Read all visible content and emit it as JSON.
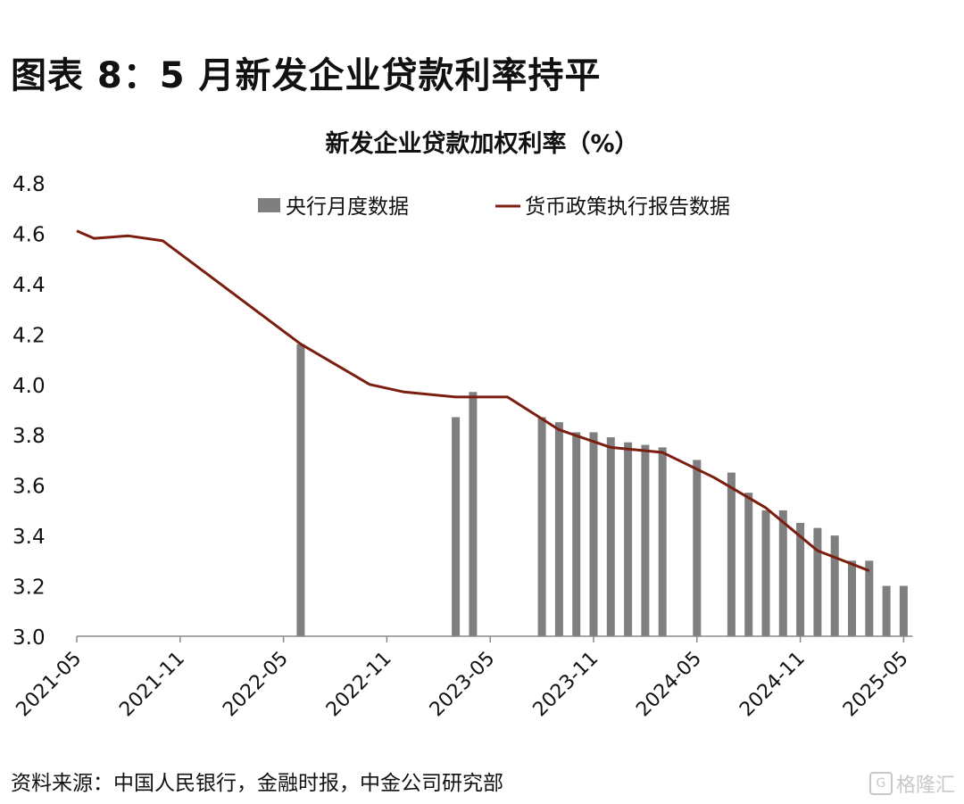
{
  "figure_title": "图表 8：5 月新发企业贷款利率持平",
  "source": "资料来源：中国人民银行，金融时报，中金公司研究部",
  "watermark": {
    "logo": "G",
    "text": "格隆汇"
  },
  "colors": {
    "bar": "#7f7f7f",
    "line": "#7b1e10",
    "axis": "#888888",
    "text": "#111111"
  },
  "chart_data": {
    "type": "bar+line",
    "title": "新发企业贷款加权利率（%）",
    "xlabel": "",
    "ylabel": "",
    "ylim": [
      3.0,
      4.8
    ],
    "yticks": [
      "3.0",
      "3.2",
      "3.4",
      "3.6",
      "3.8",
      "4.0",
      "4.2",
      "4.4",
      "4.6",
      "4.8"
    ],
    "xtick_labels": [
      "2021-05",
      "2021-11",
      "2022-05",
      "2022-11",
      "2023-05",
      "2023-11",
      "2024-05",
      "2024-11",
      "2025-05"
    ],
    "x_start": "2021-05",
    "legend": [
      "央行月度数据",
      "货币政策执行报告数据"
    ],
    "legend_position": "top",
    "series": [
      {
        "name": "央行月度数据",
        "type": "bar",
        "points": [
          {
            "month": "2022-06",
            "value": 4.16
          },
          {
            "month": "2023-03",
            "value": 3.87
          },
          {
            "month": "2023-04",
            "value": 3.97
          },
          {
            "month": "2023-08",
            "value": 3.87
          },
          {
            "month": "2023-09",
            "value": 3.85
          },
          {
            "month": "2023-10",
            "value": 3.81
          },
          {
            "month": "2023-11",
            "value": 3.81
          },
          {
            "month": "2023-12",
            "value": 3.79
          },
          {
            "month": "2024-01",
            "value": 3.77
          },
          {
            "month": "2024-02",
            "value": 3.76
          },
          {
            "month": "2024-03",
            "value": 3.75
          },
          {
            "month": "2024-05",
            "value": 3.7
          },
          {
            "month": "2024-07",
            "value": 3.65
          },
          {
            "month": "2024-08",
            "value": 3.57
          },
          {
            "month": "2024-09",
            "value": 3.5
          },
          {
            "month": "2024-10",
            "value": 3.5
          },
          {
            "month": "2024-11",
            "value": 3.45
          },
          {
            "month": "2024-12",
            "value": 3.43
          },
          {
            "month": "2025-01",
            "value": 3.4
          },
          {
            "month": "2025-02",
            "value": 3.3
          },
          {
            "month": "2025-03",
            "value": 3.3
          },
          {
            "month": "2025-04",
            "value": 3.2
          },
          {
            "month": "2025-05",
            "value": 3.2
          }
        ]
      },
      {
        "name": "货币政策执行报告数据",
        "type": "line",
        "points": [
          {
            "month": "2021-05",
            "value": 4.61
          },
          {
            "month": "2021-06",
            "value": 4.58
          },
          {
            "month": "2021-08",
            "value": 4.59
          },
          {
            "month": "2021-10",
            "value": 4.57
          },
          {
            "month": "2022-06",
            "value": 4.16
          },
          {
            "month": "2022-10",
            "value": 4.0
          },
          {
            "month": "2022-12",
            "value": 3.97
          },
          {
            "month": "2023-03",
            "value": 3.95
          },
          {
            "month": "2023-06",
            "value": 3.95
          },
          {
            "month": "2023-09",
            "value": 3.82
          },
          {
            "month": "2023-12",
            "value": 3.75
          },
          {
            "month": "2024-03",
            "value": 3.73
          },
          {
            "month": "2024-06",
            "value": 3.63
          },
          {
            "month": "2024-09",
            "value": 3.51
          },
          {
            "month": "2024-12",
            "value": 3.34
          },
          {
            "month": "2025-03",
            "value": 3.26
          }
        ]
      }
    ]
  }
}
